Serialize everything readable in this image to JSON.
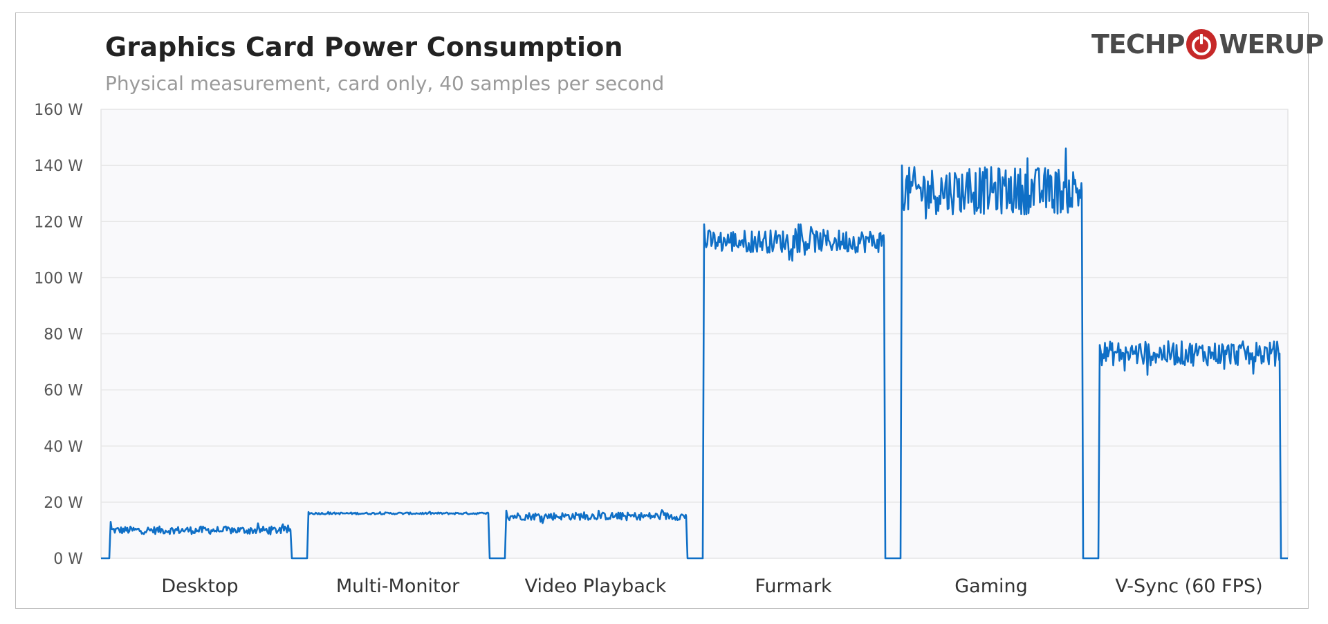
{
  "chart_data": {
    "type": "line",
    "title": "Graphics  Card Power Consumption",
    "subtitle": "Physical measurement, card only, 40 samples per second",
    "xlabel": "",
    "ylabel": "",
    "ylim": [
      0,
      160
    ],
    "yticks": [
      "0 W",
      "20 W",
      "40 W",
      "60 W",
      "80 W",
      "100 W",
      "120 W",
      "140 W",
      "160 W"
    ],
    "ytick_values": [
      0,
      20,
      40,
      60,
      80,
      100,
      120,
      140,
      160
    ],
    "grid": true,
    "legend": "none",
    "color": "#0f6fc6",
    "categories": [
      "Desktop",
      "Multi-Monitor",
      "Video Playback",
      "Furmark",
      "Gaming",
      "V-Sync (60 FPS)"
    ],
    "segments": [
      {
        "name": "Desktop",
        "mean": 10,
        "min": 8.5,
        "max": 13.5,
        "start_spike": 13
      },
      {
        "name": "Multi-Monitor",
        "mean": 16,
        "min": 15.5,
        "max": 16.8,
        "start_spike": 16.5
      },
      {
        "name": "Video Playback",
        "mean": 15,
        "min": 12.5,
        "max": 17.5,
        "start_spike": 17
      },
      {
        "name": "Furmark",
        "mean": 113,
        "min": 104,
        "max": 119,
        "start_spike": 119
      },
      {
        "name": "Gaming",
        "mean": 131,
        "min": 118,
        "max": 149,
        "start_spike": 140
      },
      {
        "name": "V-Sync (60 FPS)",
        "mean": 73,
        "min": 64,
        "max": 80,
        "start_spike": 76
      }
    ]
  },
  "branding": {
    "logo_text_left": "TECHP",
    "logo_text_right": "WERUP",
    "logo_icon": "power-button-icon",
    "brand_red": "#c62828"
  }
}
